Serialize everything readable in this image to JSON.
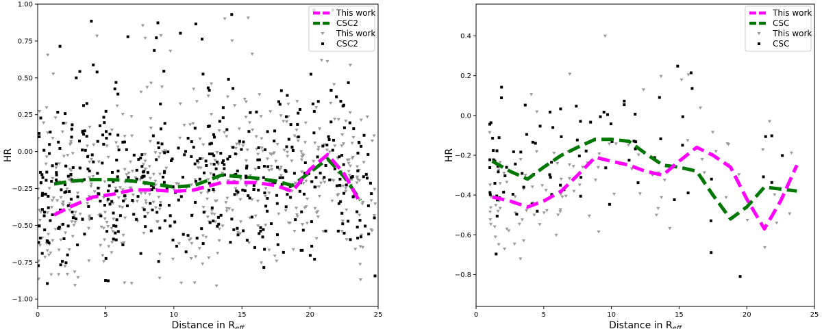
{
  "chart_data": [
    {
      "type": "scatter",
      "title": "",
      "xlabel": "Distance in R",
      "xlabel_sub": "eff",
      "ylabel": "HR",
      "xlim": [
        0,
        25
      ],
      "ylim": [
        -1.05,
        1.0
      ],
      "xticks": [
        0,
        5,
        10,
        15,
        20,
        25
      ],
      "yticks": [
        -1.0,
        -0.75,
        -0.5,
        -0.25,
        0.0,
        0.25,
        0.5,
        0.75,
        1.0
      ],
      "ytick_labels": [
        "−1.00",
        "−0.75",
        "−0.50",
        "−0.25",
        "0.00",
        "0.25",
        "0.50",
        "0.75",
        "1.00"
      ],
      "xtick_labels": [
        "0",
        "5",
        "10",
        "15",
        "20",
        "25"
      ],
      "grid": false,
      "legend_position": "top-right",
      "legend": [
        "This work",
        "CSC2",
        "This work",
        "CSC2"
      ],
      "lines": [
        {
          "name": "This work",
          "color": "#ff00ff",
          "style": "dashed",
          "x": [
            1.2,
            2.5,
            4.0,
            5.5,
            7.0,
            8.5,
            10.0,
            11.5,
            13.5,
            15.0,
            16.0,
            17.5,
            18.7,
            20.0,
            21.3,
            22.5,
            23.7
          ],
          "y": [
            -0.43,
            -0.37,
            -0.31,
            -0.29,
            -0.26,
            -0.26,
            -0.27,
            -0.26,
            -0.21,
            -0.21,
            -0.21,
            -0.23,
            -0.27,
            -0.12,
            -0.02,
            -0.15,
            -0.35
          ]
        },
        {
          "name": "CSC2",
          "color": "#007700",
          "style": "dashed",
          "x": [
            1.2,
            2.5,
            4.0,
            5.5,
            7.0,
            8.5,
            10.0,
            11.5,
            13.5,
            15.0,
            16.0,
            17.5,
            18.7,
            20.0,
            21.3,
            22.5,
            23.7
          ],
          "y": [
            -0.22,
            -0.2,
            -0.19,
            -0.19,
            -0.2,
            -0.22,
            -0.24,
            -0.23,
            -0.16,
            -0.17,
            -0.18,
            -0.2,
            -0.23,
            -0.14,
            -0.05,
            -0.17,
            -0.33
          ]
        }
      ],
      "scatter": [
        {
          "name": "This work",
          "color": "#9a9a9a",
          "marker": "triangle-down",
          "generator_seed": 11,
          "count": 520
        },
        {
          "name": "CSC2",
          "color": "#000000",
          "marker": "square",
          "generator_seed": 29,
          "count": 480
        }
      ]
    },
    {
      "type": "scatter",
      "title": "",
      "xlabel": "Distance in R",
      "xlabel_sub": "eff",
      "ylabel": "HR",
      "xlim": [
        0,
        25
      ],
      "ylim": [
        -0.96,
        0.56
      ],
      "xticks": [
        0,
        5,
        10,
        15,
        20,
        25
      ],
      "yticks": [
        -0.8,
        -0.6,
        -0.4,
        -0.2,
        0.0,
        0.2,
        0.4
      ],
      "ytick_labels": [
        "−0.8",
        "−0.6",
        "−0.4",
        "−0.2",
        "0.0",
        "0.2",
        "0.4"
      ],
      "xtick_labels": [
        "0",
        "5",
        "10",
        "15",
        "20",
        "25"
      ],
      "grid": false,
      "legend_position": "top-right",
      "legend": [
        "This work",
        "CSC",
        "This work",
        "CSC"
      ],
      "lines": [
        {
          "name": "This work",
          "color": "#ff00ff",
          "style": "dashed",
          "x": [
            1.2,
            2.5,
            3.8,
            5.0,
            6.3,
            7.5,
            8.8,
            10.0,
            11.3,
            12.5,
            13.8,
            15.0,
            16.3,
            17.5,
            18.8,
            20.0,
            21.3,
            22.5,
            23.7
          ],
          "y": [
            -0.41,
            -0.43,
            -0.46,
            -0.43,
            -0.38,
            -0.3,
            -0.21,
            -0.23,
            -0.25,
            -0.28,
            -0.3,
            -0.23,
            -0.16,
            -0.2,
            -0.26,
            -0.42,
            -0.57,
            -0.43,
            -0.25
          ]
        },
        {
          "name": "CSC",
          "color": "#007700",
          "style": "dashed",
          "x": [
            1.2,
            2.5,
            3.8,
            5.0,
            6.3,
            7.5,
            8.8,
            10.0,
            11.3,
            12.5,
            13.8,
            15.0,
            16.3,
            17.5,
            18.8,
            20.0,
            21.3,
            22.5,
            23.7
          ],
          "y": [
            -0.23,
            -0.28,
            -0.32,
            -0.26,
            -0.2,
            -0.16,
            -0.12,
            -0.12,
            -0.13,
            -0.19,
            -0.25,
            -0.26,
            -0.28,
            -0.4,
            -0.52,
            -0.46,
            -0.36,
            -0.37,
            -0.38
          ]
        }
      ],
      "scatter": [
        {
          "name": "This work",
          "color": "#9a9a9a",
          "marker": "triangle-down",
          "generator_seed": 47,
          "count": 110
        },
        {
          "name": "CSC",
          "color": "#000000",
          "marker": "square",
          "generator_seed": 83,
          "count": 95
        }
      ]
    }
  ]
}
